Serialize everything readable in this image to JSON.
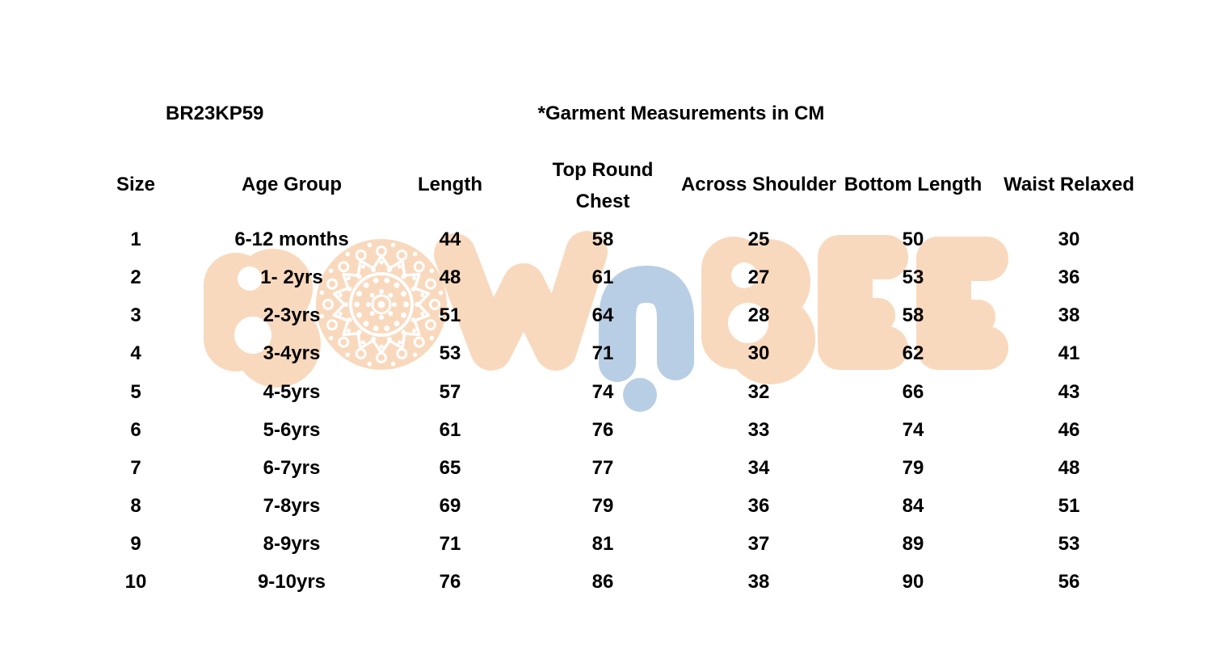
{
  "watermark": {
    "text": "BOWnBEE",
    "peach": "#f9d9bd",
    "blue": "#b8cee4"
  },
  "chart_data": {
    "type": "table",
    "style_code": "BR23KP59",
    "title": "*Garment Measurements in CM",
    "columns": [
      "Size",
      "Age Group",
      "Length",
      "Top Round Chest",
      "Across Shoulder",
      "Bottom Length",
      "Waist Relaxed"
    ],
    "rows": [
      [
        "1",
        "6-12 months",
        "44",
        "58",
        "25",
        "50",
        "30"
      ],
      [
        "2",
        "1- 2yrs",
        "48",
        "61",
        "27",
        "53",
        "36"
      ],
      [
        "3",
        "2-3yrs",
        "51",
        "64",
        "28",
        "58",
        "38"
      ],
      [
        "4",
        "3-4yrs",
        "53",
        "71",
        "30",
        "62",
        "41"
      ],
      [
        "5",
        "4-5yrs",
        "57",
        "74",
        "32",
        "66",
        "43"
      ],
      [
        "6",
        "5-6yrs",
        "61",
        "76",
        "33",
        "74",
        "46"
      ],
      [
        "7",
        "6-7yrs",
        "65",
        "77",
        "34",
        "79",
        "48"
      ],
      [
        "8",
        "7-8yrs",
        "69",
        "79",
        "36",
        "84",
        "51"
      ],
      [
        "9",
        "8-9yrs",
        "71",
        "81",
        "37",
        "89",
        "53"
      ],
      [
        "10",
        "9-10yrs",
        "76",
        "86",
        "38",
        "90",
        "56"
      ]
    ]
  }
}
